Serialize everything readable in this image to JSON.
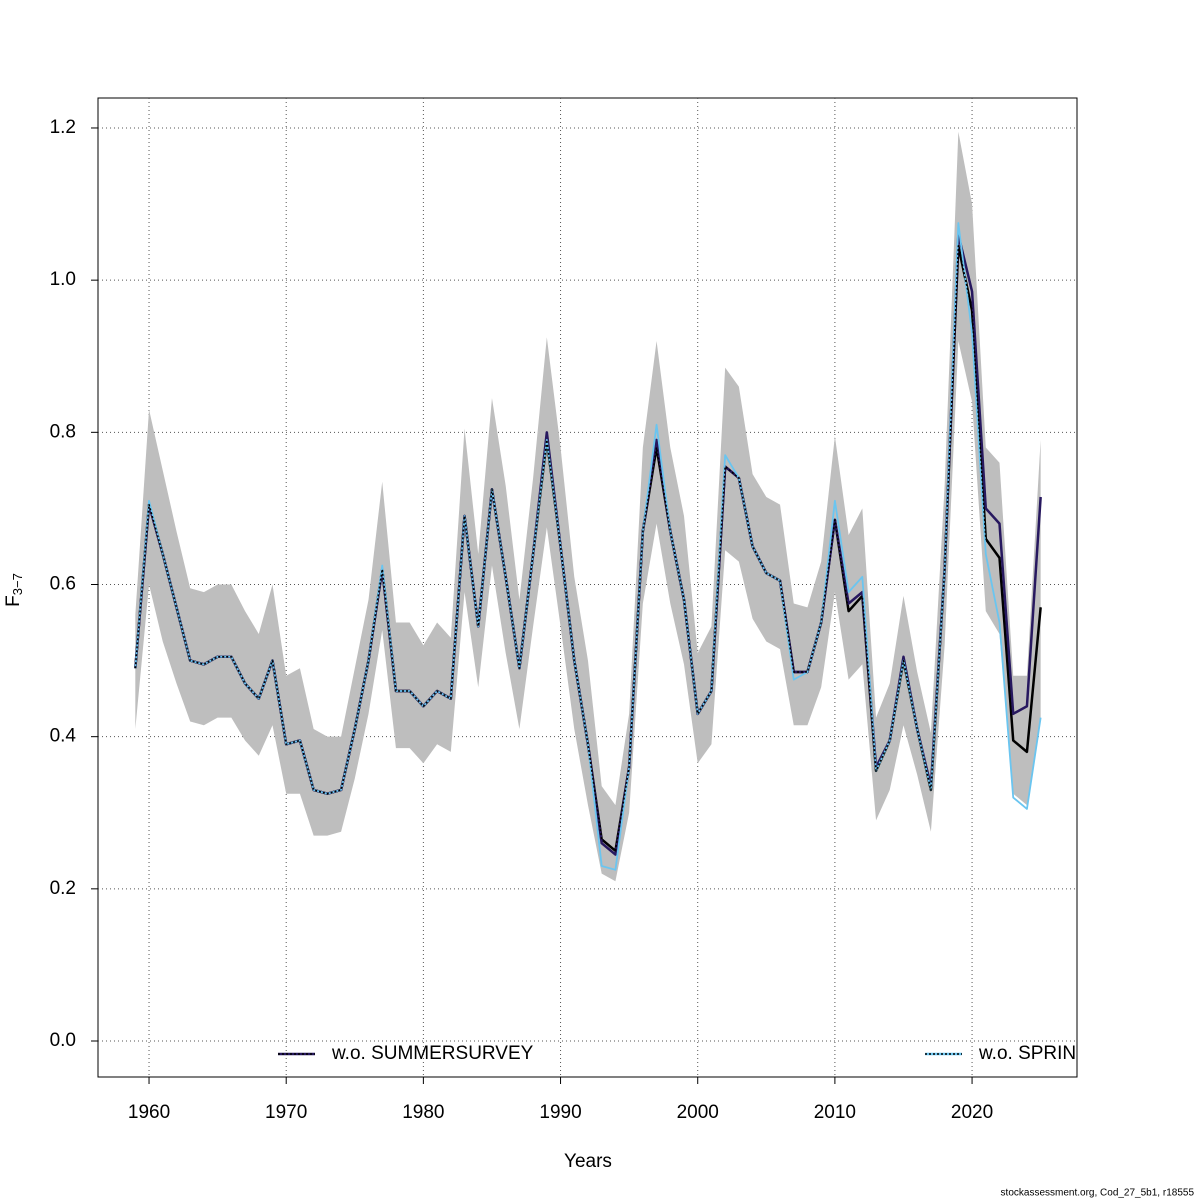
{
  "chart_data": {
    "type": "line",
    "x_label": "Years",
    "y_label": "F",
    "y_label_sub": "3−7",
    "footer": "stockassessment.org, Cod_27_5b1, r18555",
    "x": [
      1959,
      1960,
      1961,
      1962,
      1963,
      1964,
      1965,
      1966,
      1967,
      1968,
      1969,
      1970,
      1971,
      1972,
      1973,
      1974,
      1975,
      1976,
      1977,
      1978,
      1979,
      1980,
      1981,
      1982,
      1983,
      1984,
      1985,
      1986,
      1987,
      1988,
      1989,
      1990,
      1991,
      1992,
      1993,
      1994,
      1995,
      1996,
      1997,
      1998,
      1999,
      2000,
      2001,
      2002,
      2003,
      2004,
      2005,
      2006,
      2007,
      2008,
      2009,
      2010,
      2011,
      2012,
      2013,
      2014,
      2015,
      2016,
      2017,
      2018,
      2019,
      2020,
      2021,
      2022,
      2023,
      2024,
      2025
    ],
    "band": {
      "color": "#bebebe",
      "upper": [
        0.56,
        0.83,
        0.75,
        0.67,
        0.595,
        0.59,
        0.6,
        0.6,
        0.565,
        0.535,
        0.6,
        0.48,
        0.49,
        0.41,
        0.4,
        0.4,
        0.49,
        0.58,
        0.735,
        0.55,
        0.55,
        0.52,
        0.55,
        0.53,
        0.805,
        0.64,
        0.845,
        0.73,
        0.58,
        0.74,
        0.925,
        0.78,
        0.61,
        0.5,
        0.335,
        0.31,
        0.43,
        0.78,
        0.92,
        0.78,
        0.69,
        0.51,
        0.545,
        0.885,
        0.86,
        0.745,
        0.715,
        0.705,
        0.575,
        0.57,
        0.63,
        0.795,
        0.665,
        0.7,
        0.425,
        0.47,
        0.585,
        0.485,
        0.405,
        0.73,
        1.195,
        1.1,
        0.78,
        0.76,
        0.48,
        0.48,
        0.79
      ],
      "lower": [
        0.41,
        0.6,
        0.525,
        0.47,
        0.42,
        0.415,
        0.425,
        0.425,
        0.395,
        0.375,
        0.415,
        0.325,
        0.325,
        0.27,
        0.27,
        0.275,
        0.345,
        0.43,
        0.54,
        0.385,
        0.385,
        0.365,
        0.39,
        0.38,
        0.59,
        0.465,
        0.625,
        0.51,
        0.41,
        0.545,
        0.675,
        0.545,
        0.41,
        0.31,
        0.22,
        0.21,
        0.3,
        0.575,
        0.68,
        0.575,
        0.495,
        0.365,
        0.39,
        0.645,
        0.63,
        0.555,
        0.525,
        0.515,
        0.415,
        0.415,
        0.465,
        0.59,
        0.475,
        0.495,
        0.29,
        0.33,
        0.415,
        0.35,
        0.275,
        0.52,
        0.92,
        0.84,
        0.565,
        0.535,
        0.325,
        0.31,
        0.42
      ]
    },
    "line": {
      "color": "#000000",
      "values": [
        0.49,
        0.705,
        0.64,
        0.57,
        0.5,
        0.495,
        0.505,
        0.505,
        0.47,
        0.45,
        0.5,
        0.39,
        0.395,
        0.33,
        0.325,
        0.33,
        0.41,
        0.5,
        0.62,
        0.46,
        0.46,
        0.44,
        0.46,
        0.45,
        0.69,
        0.545,
        0.725,
        0.61,
        0.49,
        0.64,
        0.79,
        0.65,
        0.5,
        0.39,
        0.265,
        0.25,
        0.36,
        0.67,
        0.78,
        0.67,
        0.58,
        0.43,
        0.46,
        0.755,
        0.74,
        0.65,
        0.615,
        0.605,
        0.485,
        0.485,
        0.55,
        0.685,
        0.565,
        0.585,
        0.355,
        0.395,
        0.5,
        0.41,
        0.33,
        0.62,
        1.045,
        0.96,
        0.66,
        0.635,
        0.395,
        0.38,
        0.57
      ]
    },
    "series": [
      {
        "name": "w.o. SUMMERSURVEY",
        "color": "#27185f",
        "values": [
          0.49,
          0.705,
          0.64,
          0.57,
          0.5,
          0.495,
          0.505,
          0.505,
          0.47,
          0.45,
          0.5,
          0.39,
          0.395,
          0.33,
          0.325,
          0.33,
          0.41,
          0.5,
          0.62,
          0.46,
          0.46,
          0.44,
          0.46,
          0.45,
          0.69,
          0.545,
          0.725,
          0.61,
          0.49,
          0.64,
          0.8,
          0.65,
          0.5,
          0.39,
          0.26,
          0.245,
          0.36,
          0.67,
          0.79,
          0.67,
          0.58,
          0.43,
          0.46,
          0.755,
          0.74,
          0.65,
          0.615,
          0.605,
          0.485,
          0.485,
          0.55,
          0.685,
          0.575,
          0.59,
          0.36,
          0.395,
          0.505,
          0.41,
          0.335,
          0.62,
          1.06,
          0.985,
          0.7,
          0.68,
          0.43,
          0.44,
          0.715
        ]
      },
      {
        "name": "w.o. SPRIN",
        "color": "#6ac5f0",
        "values": [
          0.49,
          0.71,
          0.64,
          0.57,
          0.5,
          0.495,
          0.505,
          0.505,
          0.47,
          0.45,
          0.5,
          0.39,
          0.395,
          0.33,
          0.325,
          0.33,
          0.41,
          0.5,
          0.625,
          0.46,
          0.46,
          0.44,
          0.46,
          0.45,
          0.69,
          0.545,
          0.725,
          0.61,
          0.49,
          0.64,
          0.79,
          0.65,
          0.5,
          0.39,
          0.23,
          0.225,
          0.36,
          0.67,
          0.81,
          0.67,
          0.58,
          0.43,
          0.46,
          0.77,
          0.74,
          0.65,
          0.615,
          0.605,
          0.475,
          0.485,
          0.55,
          0.71,
          0.59,
          0.61,
          0.355,
          0.395,
          0.5,
          0.41,
          0.33,
          0.62,
          1.075,
          0.93,
          0.64,
          0.55,
          0.32,
          0.305,
          0.425
        ]
      }
    ],
    "xlim": [
      1956.28,
      2027.65
    ],
    "ylim": [
      -0.0473,
      1.2394
    ],
    "xticks": [
      1960,
      1970,
      1980,
      1990,
      2000,
      2010,
      2020
    ],
    "yticks": [
      {
        "value": 0,
        "label": "0.0"
      },
      0.2,
      0.4,
      0.6,
      0.8,
      {
        "value": 1,
        "label": "1.0"
      },
      1.2
    ],
    "grid": true
  }
}
